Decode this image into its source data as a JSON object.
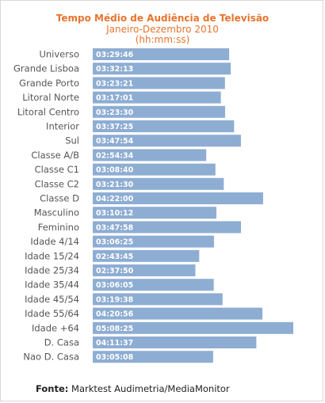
{
  "chart_data": {
    "type": "bar",
    "orientation": "horizontal",
    "title": "Tempo Médio de Audiência  de Televisão",
    "subtitle": "Janeiro-Dezembro 2010",
    "units": "(hh:mm:ss)",
    "categories": [
      "Universo",
      "Grande Lisboa",
      "Grande Porto",
      "Litoral Norte",
      "Litoral Centro",
      "Interior",
      "Sul",
      "Classe A/B",
      "Classe C1",
      "Classe C2",
      "Classe D",
      "Masculino",
      "Feminino",
      "Idade 4/14",
      "Idade 15/24",
      "Idade 25/34",
      "Idade 35/44",
      "Idade 45/54",
      "Idade 55/64",
      "Idade +64",
      "D. Casa",
      "Nao D. Casa"
    ],
    "value_labels": [
      "03:29:46",
      "03:32:13",
      "03:23:21",
      "03:17:01",
      "03:23:30",
      "03:37:25",
      "03:47:54",
      "02:54:34",
      "03:08:40",
      "03:21:30",
      "04:22:00",
      "03:10:12",
      "03:47:58",
      "03:06:25",
      "02:43:45",
      "02:37:50",
      "03:06:05",
      "03:19:38",
      "04:20:56",
      "05:08:25",
      "04:11:37",
      "03:05:08"
    ],
    "values_seconds": [
      12586,
      12733,
      12201,
      11821,
      12210,
      13045,
      13674,
      10474,
      11320,
      12090,
      15720,
      11412,
      13678,
      11185,
      9825,
      9470,
      11165,
      11978,
      15656,
      18505,
      15097,
      11108
    ],
    "bar_color": "#8eadd3",
    "title_color": "#e8742e",
    "grid": false
  },
  "source": {
    "label": "Fonte:",
    "text": " Marktest Audimetria/MediaMonitor"
  }
}
